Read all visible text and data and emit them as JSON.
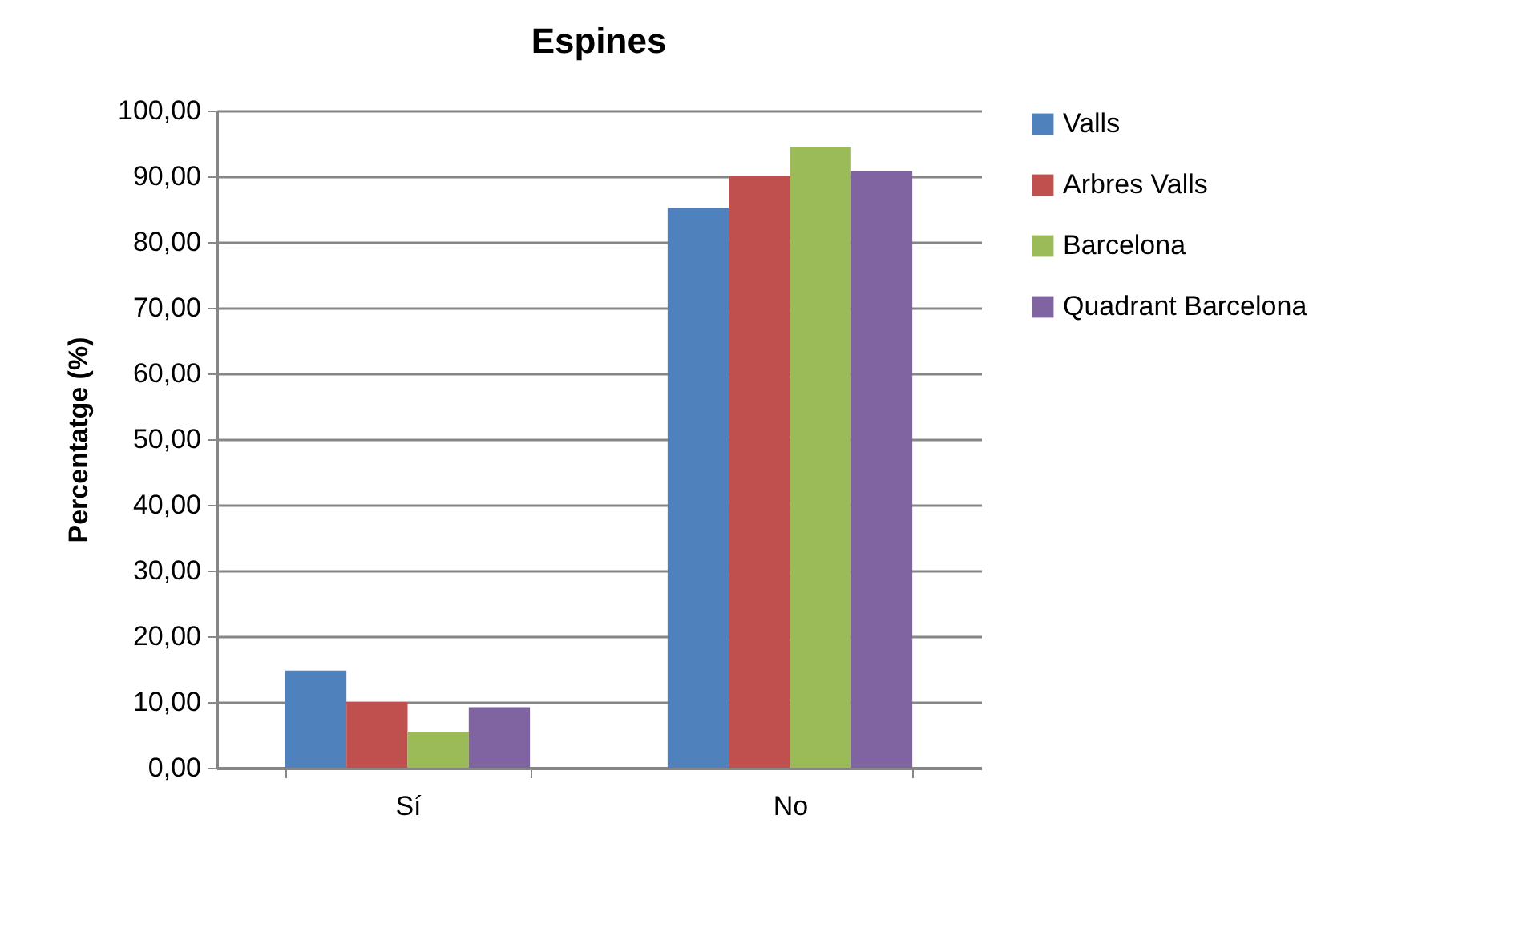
{
  "chart_data": {
    "type": "bar",
    "title": "Espines",
    "ylabel": "Percentatge (%)",
    "categories": [
      "Sí",
      "No"
    ],
    "series": [
      {
        "name": "Valls",
        "color": "#4f81bd",
        "values": [
          14.8,
          85.2
        ]
      },
      {
        "name": "Arbres Valls",
        "color": "#c0504d",
        "values": [
          10.0,
          90.0
        ]
      },
      {
        "name": "Barcelona",
        "color": "#9bbb59",
        "values": [
          5.5,
          94.5
        ]
      },
      {
        "name": "Quadrant Barcelona",
        "color": "#8064a2",
        "values": [
          9.2,
          90.8
        ]
      }
    ],
    "ylim": [
      0,
      100
    ],
    "yticks": [
      {
        "value": 0,
        "label": "0,00"
      },
      {
        "value": 10,
        "label": "10,00"
      },
      {
        "value": 20,
        "label": "20,00"
      },
      {
        "value": 30,
        "label": "30,00"
      },
      {
        "value": 40,
        "label": "40,00"
      },
      {
        "value": 50,
        "label": "50,00"
      },
      {
        "value": 60,
        "label": "60,00"
      },
      {
        "value": 70,
        "label": "70,00"
      },
      {
        "value": 80,
        "label": "80,00"
      },
      {
        "value": 90,
        "label": "90,00"
      },
      {
        "value": 100,
        "label": "100,00"
      }
    ],
    "grid": "y",
    "legend": "right"
  }
}
